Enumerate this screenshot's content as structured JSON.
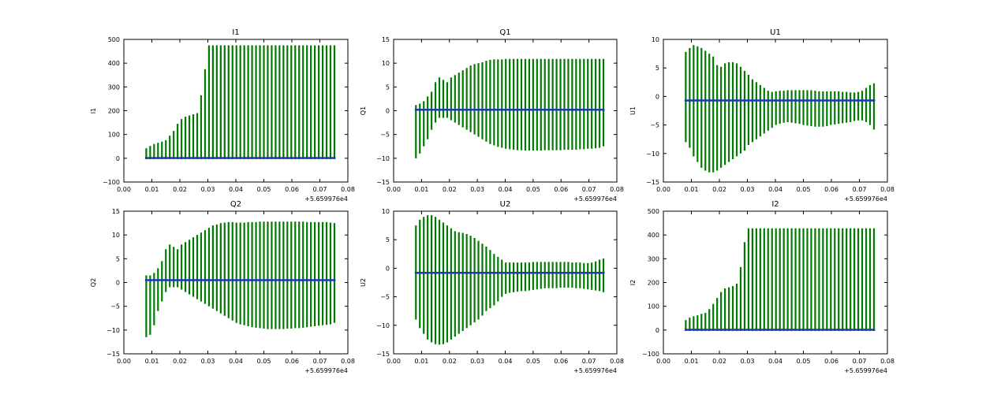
{
  "colors": {
    "errorbar": "#007a00",
    "point": "#1a3ea8",
    "axes": "#000000",
    "background": "#ffffff"
  },
  "chart_data": [
    {
      "type": "errorbar",
      "title": "I1",
      "ylabel": "I1",
      "xlim": [
        0.0,
        0.08
      ],
      "ylim": [
        -100,
        500
      ],
      "xticks": [
        "0.00",
        "0.01",
        "0.02",
        "0.03",
        "0.04",
        "0.05",
        "0.06",
        "0.07",
        "0.08"
      ],
      "yticks": [
        "−100",
        "0",
        "100",
        "200",
        "300",
        "400",
        "500"
      ],
      "x_offset": "+5.659976e4",
      "x": {
        "start": 0.008,
        "step": 0.0014,
        "count": 49
      },
      "center": [
        1,
        1,
        1,
        1,
        1,
        1,
        1,
        1,
        1,
        1,
        1,
        1,
        1,
        1,
        1,
        1,
        1,
        1,
        1,
        1,
        1,
        1,
        1,
        1,
        1,
        1,
        1,
        1,
        1,
        1,
        1,
        1,
        1,
        1,
        1,
        1,
        1,
        1,
        1,
        1,
        1,
        1,
        1,
        1,
        1,
        1,
        1,
        1,
        1
      ],
      "upper": [
        42,
        52,
        60,
        65,
        70,
        76,
        95,
        115,
        145,
        165,
        175,
        180,
        185,
        190,
        265,
        375,
        475,
        475,
        475,
        475,
        475,
        475,
        475,
        475,
        475,
        475,
        475,
        475,
        475,
        475,
        475,
        475,
        475,
        475,
        475,
        475,
        475,
        475,
        475,
        475,
        475,
        475,
        475,
        475,
        475,
        475,
        475,
        475,
        475
      ],
      "lower": [
        -2,
        -2,
        -2,
        -2,
        -2,
        -2,
        -2,
        -2,
        -2,
        -2,
        -2,
        -2,
        -2,
        -2,
        -2,
        -2,
        -2,
        -2,
        -2,
        -2,
        -2,
        -2,
        -2,
        -2,
        -2,
        -2,
        -2,
        -2,
        -2,
        -2,
        -2,
        -2,
        -2,
        -2,
        -2,
        -2,
        -2,
        -2,
        -2,
        -2,
        -2,
        -2,
        -2,
        -2,
        -2,
        -2,
        -2,
        -2,
        -2
      ]
    },
    {
      "type": "errorbar",
      "title": "Q1",
      "ylabel": "Q1",
      "xlim": [
        0.0,
        0.08
      ],
      "ylim": [
        -15,
        15
      ],
      "xticks": [
        "0.00",
        "0.01",
        "0.02",
        "0.03",
        "0.04",
        "0.05",
        "0.06",
        "0.07",
        "0.08"
      ],
      "yticks": [
        "−15",
        "−10",
        "−5",
        "0",
        "5",
        "10",
        "15"
      ],
      "x_offset": "+5.659976e4",
      "x": {
        "start": 0.008,
        "step": 0.0014,
        "count": 49
      },
      "center": [
        0.2,
        0.2,
        0.2,
        0.2,
        0.2,
        0.2,
        0.2,
        0.2,
        0.2,
        0.2,
        0.2,
        0.2,
        0.2,
        0.2,
        0.2,
        0.2,
        0.2,
        0.2,
        0.2,
        0.2,
        0.2,
        0.2,
        0.2,
        0.2,
        0.2,
        0.2,
        0.2,
        0.2,
        0.2,
        0.2,
        0.2,
        0.2,
        0.2,
        0.2,
        0.2,
        0.2,
        0.2,
        0.2,
        0.2,
        0.2,
        0.2,
        0.2,
        0.2,
        0.2,
        0.2,
        0.2,
        0.2,
        0.2,
        0.2
      ],
      "upper": [
        1.2,
        1.5,
        2,
        3,
        4,
        6,
        7,
        6.5,
        6,
        7,
        7.5,
        8,
        8.5,
        9,
        9.5,
        9.8,
        10,
        10.2,
        10.5,
        10.7,
        10.8,
        10.8,
        10.8,
        10.9,
        10.9,
        10.9,
        10.9,
        10.9,
        10.9,
        10.9,
        10.9,
        10.9,
        10.9,
        10.9,
        10.9,
        10.9,
        10.9,
        10.9,
        10.9,
        10.9,
        10.9,
        10.9,
        10.9,
        10.9,
        10.9,
        10.9,
        10.9,
        10.9,
        10.9
      ],
      "lower": [
        -10,
        -9,
        -7.5,
        -6,
        -4,
        -2.5,
        -1.5,
        -1.5,
        -1.5,
        -2,
        -2.5,
        -3,
        -3.5,
        -4,
        -4.5,
        -5,
        -5.5,
        -6,
        -6.5,
        -7,
        -7.3,
        -7.6,
        -7.8,
        -8,
        -8.1,
        -8.2,
        -8.3,
        -8.3,
        -8.4,
        -8.4,
        -8.4,
        -8.4,
        -8.4,
        -8.3,
        -8.3,
        -8.3,
        -8.3,
        -8.3,
        -8.2,
        -8.2,
        -8.2,
        -8.2,
        -8.1,
        -8.1,
        -8.0,
        -8.0,
        -7.9,
        -7.8,
        -7.5
      ]
    },
    {
      "type": "errorbar",
      "title": "U1",
      "ylabel": "U1",
      "xlim": [
        0.0,
        0.08
      ],
      "ylim": [
        -15,
        10
      ],
      "xticks": [
        "0.00",
        "0.01",
        "0.02",
        "0.03",
        "0.04",
        "0.05",
        "0.06",
        "0.07",
        "0.08"
      ],
      "yticks": [
        "−15",
        "−10",
        "−5",
        "0",
        "5",
        "10"
      ],
      "x_offset": "+5.659976e4",
      "x": {
        "start": 0.008,
        "step": 0.0014,
        "count": 49
      },
      "center": [
        -0.7,
        -0.7,
        -0.7,
        -0.7,
        -0.7,
        -0.7,
        -0.7,
        -0.7,
        -0.7,
        -0.7,
        -0.7,
        -0.7,
        -0.7,
        -0.7,
        -0.7,
        -0.7,
        -0.7,
        -0.7,
        -0.7,
        -0.7,
        -0.7,
        -0.7,
        -0.7,
        -0.7,
        -0.7,
        -0.7,
        -0.7,
        -0.7,
        -0.7,
        -0.7,
        -0.7,
        -0.7,
        -0.7,
        -0.7,
        -0.7,
        -0.7,
        -0.7,
        -0.7,
        -0.7,
        -0.7,
        -0.7,
        -0.7,
        -0.7,
        -0.7,
        -0.7,
        -0.7,
        -0.7,
        -0.7,
        -0.7
      ],
      "upper": [
        7.8,
        8.5,
        9,
        8.8,
        8.5,
        8,
        7.5,
        7,
        5.5,
        5.2,
        5.8,
        6,
        6,
        5.8,
        5.2,
        4.5,
        3.8,
        3,
        2.5,
        2,
        1.5,
        1,
        0.8,
        0.9,
        1,
        1,
        1.1,
        1.1,
        1.1,
        1.1,
        1.1,
        1.1,
        1.1,
        1,
        0.9,
        0.9,
        0.9,
        0.9,
        0.9,
        0.9,
        0.8,
        0.8,
        0.7,
        0.7,
        0.8,
        1,
        1.5,
        2,
        2.3
      ],
      "lower": [
        -8,
        -9,
        -10.5,
        -11.5,
        -12.5,
        -13,
        -13.3,
        -13.3,
        -13,
        -12.5,
        -12,
        -11.5,
        -11,
        -10.5,
        -10,
        -9.5,
        -8.5,
        -8,
        -7.5,
        -7,
        -6.5,
        -6,
        -5.5,
        -5,
        -4.8,
        -4.6,
        -4.5,
        -4.6,
        -4.7,
        -4.8,
        -5,
        -5.1,
        -5.2,
        -5.3,
        -5.3,
        -5.3,
        -5.2,
        -5,
        -4.9,
        -4.8,
        -4.7,
        -4.6,
        -4.5,
        -4.3,
        -4.2,
        -4.2,
        -4.5,
        -5,
        -5.8
      ]
    },
    {
      "type": "errorbar",
      "title": "Q2",
      "ylabel": "Q2",
      "xlim": [
        0.0,
        0.08
      ],
      "ylim": [
        -15,
        15
      ],
      "xticks": [
        "0.00",
        "0.01",
        "0.02",
        "0.03",
        "0.04",
        "0.05",
        "0.06",
        "0.07",
        "0.08"
      ],
      "yticks": [
        "−15",
        "−10",
        "−5",
        "0",
        "5",
        "10",
        "15"
      ],
      "x_offset": "+5.659976e4",
      "x": {
        "start": 0.008,
        "step": 0.0014,
        "count": 49
      },
      "center": [
        0.5,
        0.5,
        0.5,
        0.5,
        0.5,
        0.5,
        0.5,
        0.5,
        0.5,
        0.5,
        0.5,
        0.5,
        0.5,
        0.5,
        0.5,
        0.5,
        0.5,
        0.5,
        0.5,
        0.5,
        0.5,
        0.5,
        0.5,
        0.5,
        0.5,
        0.5,
        0.5,
        0.5,
        0.5,
        0.5,
        0.5,
        0.5,
        0.5,
        0.5,
        0.5,
        0.5,
        0.5,
        0.5,
        0.5,
        0.5,
        0.5,
        0.5,
        0.5,
        0.5,
        0.5,
        0.5,
        0.5,
        0.5,
        0.5
      ],
      "upper": [
        1.5,
        1.5,
        2,
        3,
        4.5,
        7,
        8,
        7.5,
        7,
        8,
        8.5,
        9,
        9.5,
        10,
        10.5,
        11,
        11.5,
        12,
        12.2,
        12.5,
        12.6,
        12.7,
        12.7,
        12.6,
        12.6,
        12.6,
        12.7,
        12.7,
        12.7,
        12.8,
        12.8,
        12.8,
        12.8,
        12.8,
        12.8,
        12.8,
        12.8,
        12.8,
        12.8,
        12.8,
        12.8,
        12.7,
        12.7,
        12.7,
        12.7,
        12.7,
        12.7,
        12.6,
        12.5
      ],
      "lower": [
        -11.5,
        -11,
        -9,
        -6,
        -4,
        -2,
        -1,
        -1,
        -1,
        -1.5,
        -2,
        -2.5,
        -3,
        -3.5,
        -4,
        -4.5,
        -5,
        -5.5,
        -6,
        -6.5,
        -7,
        -7.5,
        -8,
        -8.5,
        -8.8,
        -9,
        -9.2,
        -9.4,
        -9.5,
        -9.6,
        -9.7,
        -9.8,
        -9.8,
        -9.8,
        -9.8,
        -9.8,
        -9.7,
        -9.7,
        -9.6,
        -9.6,
        -9.5,
        -9.4,
        -9.3,
        -9.2,
        -9.1,
        -9,
        -8.9,
        -8.8,
        -8.5
      ]
    },
    {
      "type": "errorbar",
      "title": "U2",
      "ylabel": "U2",
      "xlim": [
        0.0,
        0.08
      ],
      "ylim": [
        -15,
        10
      ],
      "xticks": [
        "0.00",
        "0.01",
        "0.02",
        "0.03",
        "0.04",
        "0.05",
        "0.06",
        "0.07",
        "0.08"
      ],
      "yticks": [
        "−15",
        "−10",
        "−5",
        "0",
        "5",
        "10"
      ],
      "x_offset": "+5.659976e4",
      "x": {
        "start": 0.008,
        "step": 0.0014,
        "count": 49
      },
      "center": [
        -0.8,
        -0.8,
        -0.8,
        -0.8,
        -0.8,
        -0.8,
        -0.8,
        -0.8,
        -0.8,
        -0.8,
        -0.8,
        -0.8,
        -0.8,
        -0.8,
        -0.8,
        -0.8,
        -0.8,
        -0.8,
        -0.8,
        -0.8,
        -0.8,
        -0.8,
        -0.8,
        -0.8,
        -0.8,
        -0.8,
        -0.8,
        -0.8,
        -0.8,
        -0.8,
        -0.8,
        -0.8,
        -0.8,
        -0.8,
        -0.8,
        -0.8,
        -0.8,
        -0.8,
        -0.8,
        -0.8,
        -0.8,
        -0.8,
        -0.8,
        -0.8,
        -0.8,
        -0.8,
        -0.8,
        -0.8,
        -0.8
      ],
      "upper": [
        7.5,
        8.5,
        9,
        9.3,
        9.3,
        9,
        8.5,
        8,
        7.5,
        7,
        6.5,
        6.3,
        6.2,
        6,
        5.7,
        5.3,
        4.8,
        4.3,
        3.8,
        3.2,
        2.5,
        2,
        1.5,
        1,
        1,
        1,
        1,
        1,
        1,
        1,
        1.1,
        1.1,
        1.1,
        1.1,
        1.1,
        1.1,
        1.1,
        1.1,
        1.1,
        1.1,
        1,
        1,
        1,
        0.9,
        0.9,
        1,
        1.2,
        1.5,
        1.7
      ],
      "lower": [
        -9,
        -10.5,
        -11.5,
        -12.5,
        -13,
        -13.3,
        -13.4,
        -13.3,
        -13,
        -12.5,
        -12,
        -11.5,
        -11,
        -10.5,
        -10,
        -9.5,
        -9,
        -8.3,
        -7.5,
        -7,
        -6.5,
        -5.8,
        -5,
        -4.5,
        -4.3,
        -4.2,
        -4.1,
        -4,
        -4,
        -3.9,
        -3.8,
        -3.7,
        -3.6,
        -3.5,
        -3.5,
        -3.5,
        -3.5,
        -3.4,
        -3.4,
        -3.4,
        -3.4,
        -3.5,
        -3.5,
        -3.6,
        -3.7,
        -3.8,
        -3.9,
        -4,
        -4.2
      ]
    },
    {
      "type": "errorbar",
      "title": "I2",
      "ylabel": "I2",
      "xlim": [
        0.0,
        0.08
      ],
      "ylim": [
        -100,
        500
      ],
      "xticks": [
        "0.00",
        "0.01",
        "0.02",
        "0.03",
        "0.04",
        "0.05",
        "0.06",
        "0.07",
        "0.08"
      ],
      "yticks": [
        "−100",
        "0",
        "100",
        "200",
        "300",
        "400",
        "500"
      ],
      "x_offset": "+5.659976e4",
      "x": {
        "start": 0.008,
        "step": 0.0014,
        "count": 49
      },
      "center": [
        1,
        1,
        1,
        1,
        1,
        1,
        1,
        1,
        1,
        1,
        1,
        1,
        1,
        1,
        1,
        1,
        1,
        1,
        1,
        1,
        1,
        1,
        1,
        1,
        1,
        1,
        1,
        1,
        1,
        1,
        1,
        1,
        1,
        1,
        1,
        1,
        1,
        1,
        1,
        1,
        1,
        1,
        1,
        1,
        1,
        1,
        1,
        1,
        1
      ],
      "upper": [
        42,
        52,
        58,
        62,
        68,
        72,
        88,
        110,
        135,
        160,
        175,
        180,
        185,
        195,
        265,
        370,
        428,
        428,
        428,
        428,
        428,
        428,
        428,
        428,
        428,
        428,
        428,
        428,
        428,
        428,
        428,
        428,
        428,
        428,
        428,
        428,
        428,
        428,
        428,
        428,
        428,
        428,
        428,
        428,
        428,
        428,
        428,
        428,
        428
      ],
      "lower": [
        -2,
        -2,
        -2,
        -2,
        -2,
        -2,
        -2,
        -2,
        -2,
        -2,
        -2,
        -2,
        -2,
        -2,
        -2,
        -2,
        -2,
        -2,
        -2,
        -2,
        -2,
        -2,
        -2,
        -2,
        -2,
        -2,
        -2,
        -2,
        -2,
        -2,
        -2,
        -2,
        -2,
        -2,
        -2,
        -2,
        -2,
        -2,
        -2,
        -2,
        -2,
        -2,
        -2,
        -2,
        -2,
        -2,
        -2,
        -2,
        -2
      ]
    }
  ]
}
